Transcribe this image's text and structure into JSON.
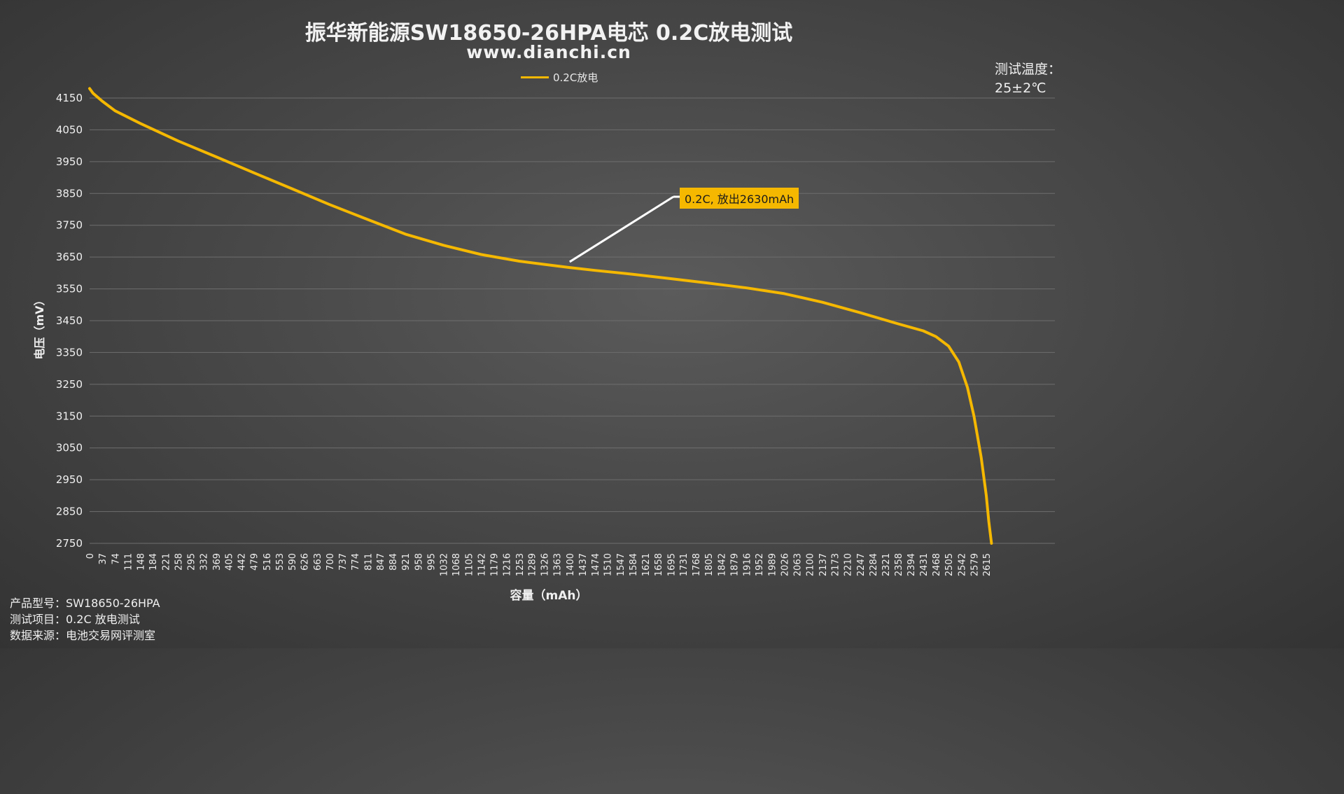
{
  "title": "振华新能源SW18650-26HPA电芯 0.2C放电测试",
  "subtitle": "www.dianchi.cn",
  "legend": {
    "label": "0.2C放电",
    "color": "#f5b800"
  },
  "temperature": {
    "line1": "测试温度：",
    "line2": "25±2℃"
  },
  "info": {
    "model": "产品型号：SW18650-26HPA",
    "item": "测试项目：0.2C 放电测试",
    "source": "数据来源：电池交易网评测室"
  },
  "annotation": {
    "text": "0.2C, 放出2630mAh",
    "point": {
      "x": 1400,
      "y": 3635
    }
  },
  "chart_data": {
    "type": "line",
    "title": "振华新能源SW18650-26HPA电芯 0.2C放电测试",
    "xlabel": "容量（mAh）",
    "ylabel": "电压（mV）",
    "xlim": [
      0,
      2815
    ],
    "ylim": [
      2750,
      4150
    ],
    "yticks": [
      4150,
      4050,
      3950,
      3850,
      3750,
      3650,
      3550,
      3450,
      3350,
      3250,
      3150,
      3050,
      2950,
      2850,
      2750
    ],
    "xticks": [
      0,
      37,
      74,
      111,
      148,
      184,
      221,
      258,
      295,
      332,
      369,
      405,
      442,
      479,
      516,
      553,
      590,
      626,
      663,
      700,
      737,
      774,
      811,
      847,
      884,
      921,
      958,
      995,
      1032,
      1068,
      1105,
      1142,
      1179,
      1216,
      1253,
      1289,
      1326,
      1363,
      1400,
      1437,
      1474,
      1510,
      1547,
      1584,
      1621,
      1658,
      1695,
      1731,
      1768,
      1805,
      1842,
      1879,
      1916,
      1952,
      1989,
      2026,
      2063,
      2100,
      2137,
      2173,
      2210,
      2247,
      2284,
      2321,
      2358,
      2394,
      2431,
      2468,
      2505,
      2542,
      2579,
      2615
    ],
    "grid": true,
    "legend_position": "top-center",
    "series": [
      {
        "name": "0.2C放电",
        "color": "#f5b800",
        "x": [
          0,
          10,
          37,
          74,
          148,
          258,
          369,
          479,
          590,
          700,
          811,
          921,
          1032,
          1142,
          1253,
          1363,
          1400,
          1474,
          1584,
          1695,
          1805,
          1916,
          2026,
          2137,
          2247,
          2358,
          2431,
          2468,
          2505,
          2535,
          2560,
          2579,
          2600,
          2615,
          2622,
          2630
        ],
        "y": [
          4180,
          4165,
          4140,
          4110,
          4070,
          4015,
          3965,
          3915,
          3865,
          3815,
          3768,
          3722,
          3687,
          3658,
          3637,
          3622,
          3617,
          3608,
          3596,
          3582,
          3568,
          3553,
          3535,
          3508,
          3475,
          3440,
          3418,
          3400,
          3370,
          3320,
          3240,
          3150,
          3020,
          2900,
          2820,
          2750
        ]
      }
    ]
  }
}
